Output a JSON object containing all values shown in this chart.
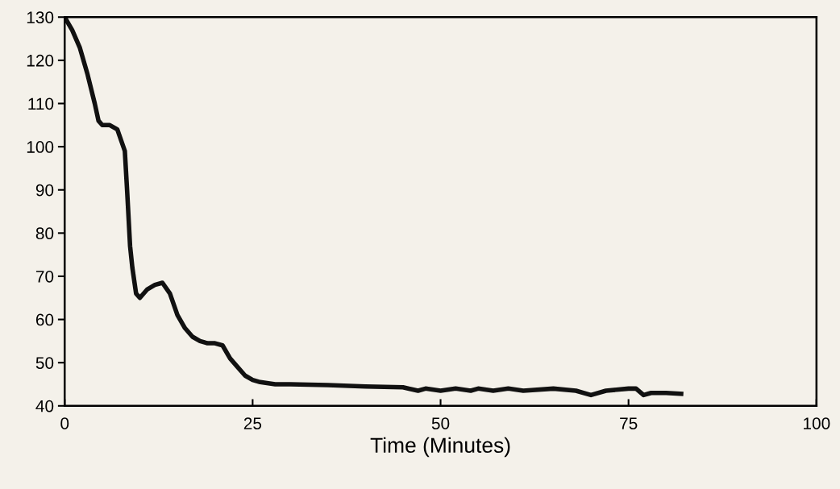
{
  "chart_data": {
    "type": "line",
    "xlabel": "Time (Minutes)",
    "series": [
      {
        "color": "#111111",
        "x": [
          0,
          1,
          2,
          3,
          4,
          4.5,
          5,
          6,
          7,
          8,
          8.3,
          8.7,
          9,
          9.5,
          10,
          11,
          12,
          13,
          14,
          15,
          16,
          17,
          18,
          19,
          20,
          21,
          22,
          23,
          24,
          25,
          26,
          28,
          30,
          35,
          40,
          45,
          47,
          48,
          50,
          52,
          54,
          55,
          57,
          59,
          61,
          65,
          68,
          70,
          72,
          75,
          76,
          77,
          78,
          80,
          82
        ],
        "values": [
          130,
          127,
          123,
          117,
          110,
          106,
          105,
          105,
          104,
          99,
          90,
          77,
          72,
          66,
          65,
          67,
          68,
          68.5,
          66,
          61,
          58,
          56,
          55,
          54.5,
          54.5,
          54,
          51,
          49,
          47,
          46,
          45.5,
          45,
          45,
          44.8,
          44.5,
          44.3,
          43.5,
          44,
          43.5,
          44,
          43.5,
          44,
          43.5,
          44,
          43.5,
          44,
          43.5,
          42.5,
          43.5,
          44,
          44,
          42.5,
          43,
          43,
          42.8
        ]
      }
    ],
    "xlim": [
      0,
      100
    ],
    "xticks": [
      0,
      25,
      50,
      75,
      100
    ],
    "ylim": [
      40,
      130
    ],
    "yticks": [
      40,
      50,
      60,
      70,
      80,
      90,
      100,
      110,
      120,
      130
    ],
    "grid": false,
    "legend": false,
    "marker": "none",
    "line_style": "solid"
  }
}
